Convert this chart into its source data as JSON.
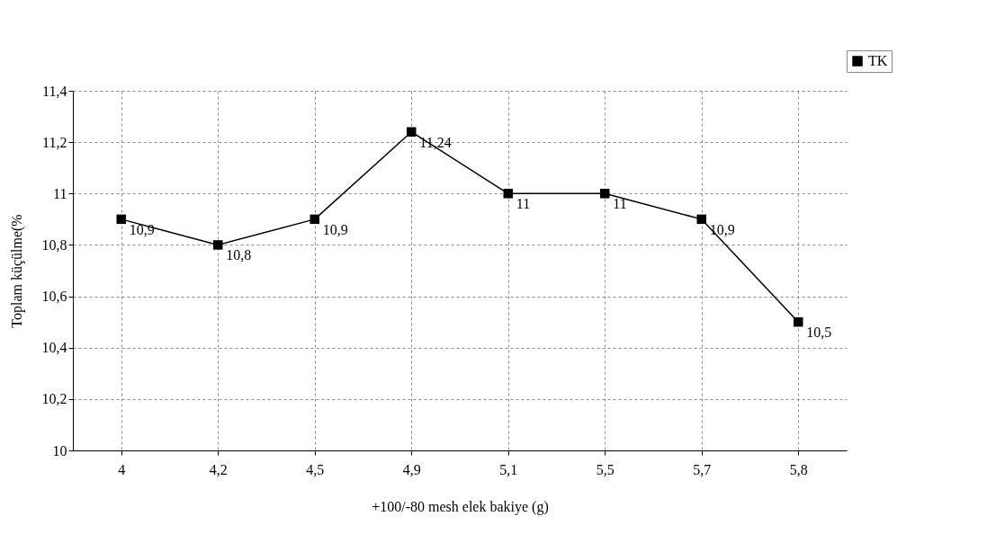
{
  "chart_data": {
    "type": "line",
    "xlabel": "+100/-80 mesh elek bakiye (g)",
    "ylabel": "Toplam küçülme(%",
    "categories": [
      "4",
      "4,2",
      "4,5",
      "4,9",
      "5,1",
      "5,5",
      "5,7",
      "5,8"
    ],
    "series": [
      {
        "name": "TK",
        "color": "#000000",
        "values": [
          10.9,
          10.8,
          10.9,
          11.24,
          11,
          11,
          10.9,
          10.5
        ],
        "value_labels": [
          "10,9",
          "10,8",
          "10,9",
          "11,24",
          "11",
          "11",
          "10,9",
          "10,5"
        ]
      }
    ],
    "ylim": [
      10,
      11.4
    ],
    "yticks": [
      10,
      {
        "value": 10.2,
        "label": "10,2"
      },
      {
        "value": 10.4,
        "label": "10,4"
      },
      {
        "value": 10.6,
        "label": "10,6"
      },
      {
        "value": 10.8,
        "label": "10,8"
      },
      11,
      {
        "value": 11.2,
        "label": "11,2"
      },
      {
        "value": 11.4,
        "label": "11,4"
      }
    ],
    "grid": true,
    "legend": "top right",
    "marker": "square",
    "line_style": "solid"
  }
}
